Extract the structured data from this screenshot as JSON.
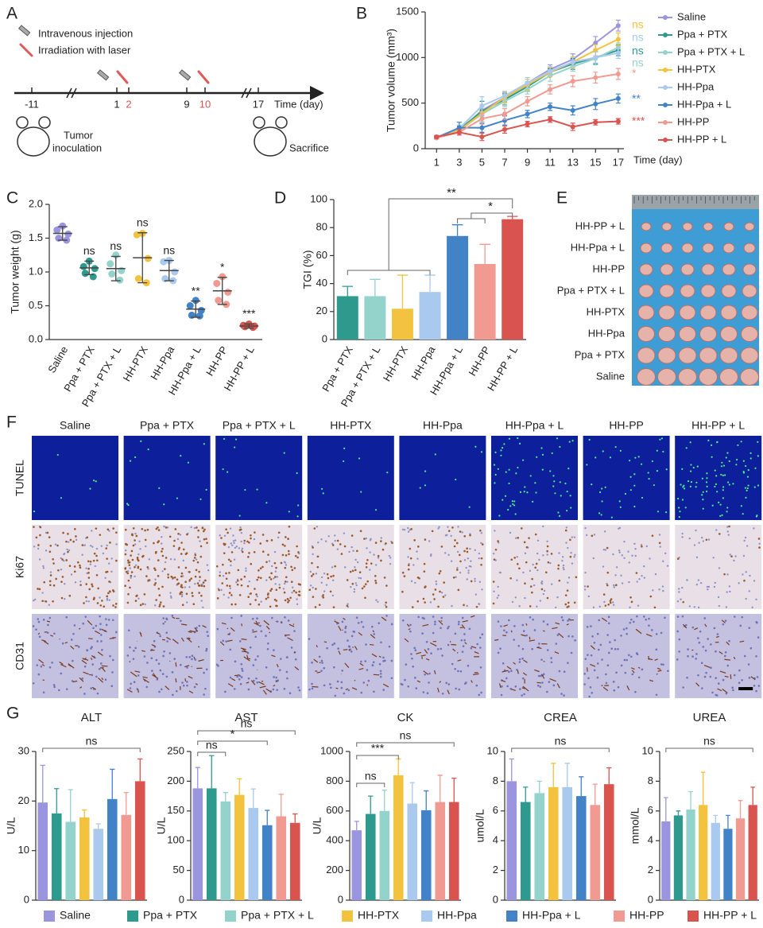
{
  "panel_labels": [
    "A",
    "B",
    "C",
    "D",
    "E",
    "F",
    "G"
  ],
  "timeline": {
    "legend": [
      "Intravenous injection",
      "Irradiation with laser"
    ],
    "ticks": [
      "-11",
      "1",
      "2",
      "9",
      "10",
      "17"
    ],
    "axis_label": "Time (day)",
    "start_event": [
      "Tumor",
      "inoculation"
    ],
    "end_event": "Sacrifice"
  },
  "photo": {
    "rows": [
      "HH-PP + L",
      "HH-Ppa + L",
      "HH-PP",
      "Ppa + PTX + L",
      "HH-PTX",
      "HH-Ppa",
      "Ppa + PTX",
      "Saline"
    ]
  },
  "histology": {
    "columns": [
      "Saline",
      "Ppa + PTX",
      "Ppa + PTX + L",
      "HH-PTX",
      "HH-Ppa",
      "HH-Ppa + L",
      "HH-PP",
      "HH-PP + L"
    ],
    "rows": [
      "TUNEL",
      "Ki67",
      "CD31"
    ]
  },
  "group_legend": [
    {
      "name": "Saline",
      "color": "#9b95e0"
    },
    {
      "name": "Ppa + PTX",
      "color": "#2e9a8e"
    },
    {
      "name": "Ppa + PTX + L",
      "color": "#93d3cb"
    },
    {
      "name": "HH-PTX",
      "color": "#f3c23f"
    },
    {
      "name": "HH-Ppa",
      "color": "#a9c9ee"
    },
    {
      "name": "HH-Ppa + L",
      "color": "#4282c6"
    },
    {
      "name": "HH-PP",
      "color": "#f19a91"
    },
    {
      "name": "HH-PP + L",
      "color": "#d9534f"
    }
  ],
  "chart_data": [
    {
      "type": "line",
      "ylabel": "Tumor volume (mm³)",
      "xlabel": "Time (day)",
      "x": [
        1,
        3,
        5,
        7,
        9,
        11,
        13,
        15,
        17
      ],
      "xlim": [
        0,
        17.5
      ],
      "xticks": [
        1,
        3,
        5,
        7,
        9,
        11,
        13,
        15,
        17
      ],
      "ylim": [
        0,
        1500
      ],
      "yticks": [
        0,
        500,
        1000,
        1500
      ],
      "series": [
        {
          "name": "Saline",
          "color": "#9b95e0",
          "values": [
            120,
            200,
            420,
            560,
            720,
            870,
            980,
            1160,
            1350
          ],
          "errors": [
            15,
            30,
            60,
            50,
            60,
            50,
            60,
            70,
            60
          ]
        },
        {
          "name": "Ppa + PTX",
          "color": "#2e9a8e",
          "values": [
            120,
            210,
            410,
            540,
            680,
            840,
            930,
            1000,
            1080
          ],
          "errors": [
            15,
            40,
            110,
            60,
            50,
            40,
            60,
            70,
            60
          ]
        },
        {
          "name": "Ppa + PTX + L",
          "color": "#93d3cb",
          "values": [
            120,
            200,
            380,
            520,
            650,
            800,
            900,
            990,
            1110
          ],
          "errors": [
            15,
            30,
            80,
            60,
            50,
            60,
            50,
            70,
            50
          ]
        },
        {
          "name": "HH-PTX",
          "color": "#f3c23f",
          "values": [
            120,
            200,
            390,
            560,
            700,
            840,
            950,
            1080,
            1200
          ],
          "errors": [
            15,
            30,
            70,
            60,
            60,
            50,
            60,
            60,
            70
          ]
        },
        {
          "name": "HH-Ppa",
          "color": "#a9c9ee",
          "values": [
            130,
            220,
            470,
            580,
            720,
            850,
            950,
            1000,
            1050
          ],
          "errors": [
            15,
            40,
            100,
            50,
            60,
            50,
            50,
            60,
            60
          ]
        },
        {
          "name": "HH-Ppa + L",
          "color": "#4282c6",
          "values": [
            120,
            230,
            230,
            310,
            380,
            460,
            420,
            490,
            550
          ],
          "errors": [
            15,
            60,
            50,
            50,
            40,
            40,
            50,
            60,
            50
          ]
        },
        {
          "name": "HH-PP",
          "color": "#f19a91",
          "values": [
            120,
            180,
            330,
            380,
            520,
            650,
            740,
            780,
            820
          ],
          "errors": [
            15,
            30,
            60,
            60,
            50,
            50,
            60,
            60,
            60
          ]
        },
        {
          "name": "HH-PP + L",
          "color": "#d9534f",
          "values": [
            130,
            180,
            130,
            210,
            270,
            320,
            240,
            290,
            300
          ],
          "errors": [
            15,
            30,
            40,
            40,
            30,
            30,
            40,
            30,
            30
          ]
        }
      ],
      "annotations": [
        {
          "text": "ns",
          "color": "#f3c23f"
        },
        {
          "text": "ns",
          "color": "#a9c9ee"
        },
        {
          "text": "ns",
          "color": "#2e9a8e"
        },
        {
          "text": "ns",
          "color": "#93d3cb"
        },
        {
          "text": "*",
          "color": "#f19a91"
        },
        {
          "text": "**",
          "color": "#4282c6"
        },
        {
          "text": "***",
          "color": "#d9534f"
        }
      ]
    },
    {
      "type": "dot",
      "ylabel": "Tumor weight (g)",
      "categories": [
        "Saline",
        "Ppa + PTX",
        "Ppa + PTX + L",
        "HH-PTX",
        "HH-Ppa",
        "HH-Ppa + L",
        "HH-PP",
        "HH-PP + L"
      ],
      "colors": [
        "#9b95e0",
        "#2e9a8e",
        "#93d3cb",
        "#f3c23f",
        "#a9c9ee",
        "#4282c6",
        "#f19a91",
        "#d9534f"
      ],
      "points": [
        [
          1.68,
          1.62,
          1.56,
          1.5,
          1.47
        ],
        [
          1.16,
          1.08,
          1.05,
          0.98,
          0.93
        ],
        [
          1.25,
          1.12,
          1.02,
          0.97,
          0.88
        ],
        [
          1.57,
          1.55,
          1.2,
          0.9,
          0.84
        ],
        [
          1.17,
          1.15,
          1.0,
          0.9,
          0.87
        ],
        [
          0.58,
          0.5,
          0.43,
          0.36,
          0.35
        ],
        [
          0.93,
          0.83,
          0.7,
          0.58,
          0.52
        ],
        [
          0.23,
          0.21,
          0.2,
          0.19,
          0.18
        ]
      ],
      "means": [
        1.57,
        1.06,
        1.05,
        1.21,
        1.02,
        0.45,
        0.72,
        0.2
      ],
      "errors": [
        0.1,
        0.1,
        0.18,
        0.37,
        0.15,
        0.12,
        0.2,
        0.03
      ],
      "annotations": [
        null,
        "ns",
        "ns",
        "ns",
        "ns",
        "**",
        "*",
        "***"
      ],
      "ylim": [
        0,
        2.0
      ],
      "yticks": [
        {
          "value": 0,
          "label": "0.0"
        },
        {
          "value": 0.5,
          "label": "0.5"
        },
        {
          "value": 1.0,
          "label": "1.0"
        },
        {
          "value": 1.5,
          "label": "1.5"
        },
        {
          "value": 2.0,
          "label": "2.0"
        }
      ]
    },
    {
      "type": "bar",
      "ylabel": "TGI (%)",
      "categories": [
        "Ppa + PTX",
        "Ppa + PTX + L",
        "HH-PTX",
        "HH-Ppa",
        "HH-Ppa + L",
        "HH-PP",
        "HH-PP + L"
      ],
      "colors": [
        "#2e9a8e",
        "#93d3cb",
        "#f3c23f",
        "#a9c9ee",
        "#4282c6",
        "#f19a91",
        "#d9534f"
      ],
      "values": [
        31,
        31,
        22,
        34,
        74,
        54,
        86
      ],
      "errors": [
        7,
        12,
        24,
        12,
        8,
        14,
        2
      ],
      "ylim": [
        0,
        100
      ],
      "yticks": [
        0,
        20,
        40,
        60,
        80,
        100
      ],
      "annotations": [
        "**",
        "*"
      ]
    },
    {
      "type": "bar",
      "title": "ALT",
      "ylabel": "U/L",
      "colors": [
        "#9b95e0",
        "#2e9a8e",
        "#93d3cb",
        "#f3c23f",
        "#a9c9ee",
        "#4282c6",
        "#f19a91",
        "#d9534f"
      ],
      "values": [
        19.7,
        17.5,
        15.8,
        16.7,
        14.4,
        20.4,
        17.2,
        24
      ],
      "errors": [
        7.5,
        5,
        6.5,
        1.5,
        1,
        6,
        4.5,
        4.5
      ],
      "ylim": [
        0,
        30
      ],
      "yticks": [
        0,
        10,
        20,
        30
      ],
      "annotations": [
        "ns"
      ]
    },
    {
      "type": "bar",
      "title": "AST",
      "ylabel": "U/L",
      "colors": [
        "#9b95e0",
        "#2e9a8e",
        "#93d3cb",
        "#f3c23f",
        "#a9c9ee",
        "#4282c6",
        "#f19a91",
        "#d9534f"
      ],
      "values": [
        188,
        188,
        166,
        177,
        155,
        126,
        141,
        130
      ],
      "errors": [
        35,
        55,
        15,
        27,
        32,
        25,
        37,
        15
      ],
      "ylim": [
        0,
        250
      ],
      "yticks": [
        0,
        50,
        100,
        150,
        200,
        250
      ],
      "annotations": [
        "ns",
        "*",
        "ns"
      ]
    },
    {
      "type": "bar",
      "title": "CK",
      "ylabel": "U/L",
      "colors": [
        "#9b95e0",
        "#2e9a8e",
        "#93d3cb",
        "#f3c23f",
        "#a9c9ee",
        "#4282c6",
        "#f19a91",
        "#d9534f"
      ],
      "values": [
        470,
        580,
        600,
        840,
        650,
        605,
        660,
        660
      ],
      "errors": [
        60,
        120,
        140,
        110,
        140,
        130,
        180,
        160
      ],
      "ylim": [
        0,
        1000
      ],
      "yticks": [
        0,
        200,
        400,
        600,
        800,
        1000
      ],
      "annotations": [
        "ns",
        "***",
        "ns"
      ]
    },
    {
      "type": "bar",
      "title": "CREA",
      "ylabel": "umol/L",
      "colors": [
        "#9b95e0",
        "#2e9a8e",
        "#93d3cb",
        "#f3c23f",
        "#a9c9ee",
        "#4282c6",
        "#f19a91",
        "#d9534f"
      ],
      "values": [
        8,
        6.6,
        7.2,
        7.6,
        7.6,
        7,
        6.4,
        7.8
      ],
      "errors": [
        1.5,
        1,
        0.8,
        1.6,
        1.6,
        1.3,
        1.4,
        1.1
      ],
      "ylim": [
        0,
        10
      ],
      "yticks": [
        0,
        2,
        4,
        6,
        8,
        10
      ],
      "annotations": [
        "ns"
      ]
    },
    {
      "type": "bar",
      "title": "UREA",
      "ylabel": "mmol/L",
      "colors": [
        "#9b95e0",
        "#2e9a8e",
        "#93d3cb",
        "#f3c23f",
        "#a9c9ee",
        "#4282c6",
        "#f19a91",
        "#d9534f"
      ],
      "values": [
        5.3,
        5.7,
        6.1,
        6.4,
        5.2,
        4.8,
        5.5,
        6.4
      ],
      "errors": [
        1.6,
        0.3,
        1.2,
        2.2,
        0.5,
        0.9,
        1.2,
        1.2
      ],
      "ylim": [
        0,
        10
      ],
      "yticks": [
        0,
        2,
        4,
        6,
        8,
        10
      ],
      "annotations": [
        "ns"
      ]
    }
  ]
}
